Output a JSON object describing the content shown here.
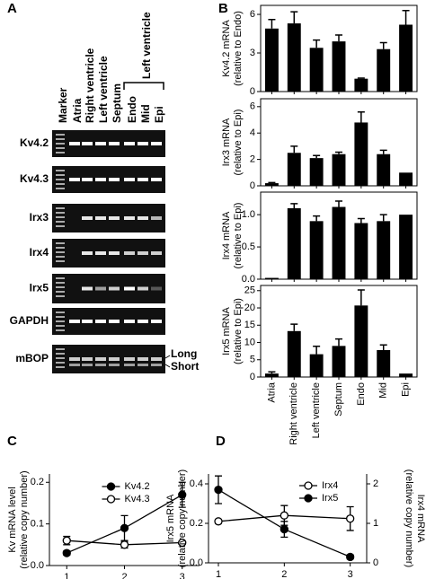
{
  "panel_labels": {
    "a": "A",
    "b": "B",
    "c": "C",
    "d": "D"
  },
  "gel": {
    "lanes": [
      "Marker",
      "Atria",
      "Right ventricle",
      "Left ventricle",
      "Septum",
      "Endo",
      "Mid",
      "Epi"
    ],
    "group_label": "Left ventricle",
    "genes": [
      "Kv4.2",
      "Kv4.3",
      "Irx3",
      "Irx4",
      "Irx5",
      "GAPDH",
      "mBOP"
    ],
    "band_labels": [
      "Long",
      "Short"
    ]
  },
  "chart_data": [
    {
      "type": "bar",
      "ylabel": [
        "Kv4.2 mRNA",
        "(relative to Endo)"
      ],
      "color": "#000000",
      "values": [
        4.9,
        5.3,
        3.4,
        3.9,
        1.0,
        3.3,
        5.2
      ],
      "errors": [
        0.7,
        0.9,
        0.6,
        0.5,
        0.05,
        0.5,
        1.1
      ],
      "ylim": [
        0,
        6.7
      ],
      "yticks": [
        0,
        3,
        6
      ]
    },
    {
      "type": "bar",
      "ylabel": [
        "Irx3 mRNA",
        "(relative to Epi)"
      ],
      "color": "#000000",
      "values": [
        0.2,
        2.5,
        2.1,
        2.4,
        4.8,
        2.4,
        1.0
      ],
      "errors": [
        0.05,
        0.5,
        0.2,
        0.15,
        0.8,
        0.3,
        0.0
      ],
      "ylim": [
        0,
        6.6
      ],
      "yticks": [
        0,
        2,
        4,
        6
      ]
    },
    {
      "type": "bar",
      "ylabel": [
        "Irx4 mRNA",
        "(relative to Epi)"
      ],
      "color": "#000000",
      "values": [
        0.02,
        1.1,
        0.9,
        1.12,
        0.87,
        0.9,
        1.0
      ],
      "errors": [
        0.0,
        0.07,
        0.08,
        0.09,
        0.07,
        0.1,
        0.0
      ],
      "ylim": [
        0,
        1.35
      ],
      "yticks": [
        {
          "value": 0,
          "label": "0.0"
        },
        {
          "value": 0.5,
          "label": "0.5"
        },
        {
          "value": 1,
          "label": "1.0"
        }
      ]
    },
    {
      "type": "bar",
      "ylabel": [
        "Irx5 mRNA",
        "(relative to Epi)"
      ],
      "color": "#000000",
      "categories": [
        "Atria",
        "Right ventricle",
        "Left ventricle",
        "Septum",
        "Endo",
        "Mid",
        "Epi"
      ],
      "values": [
        1.0,
        13.3,
        6.6,
        9.0,
        20.7,
        7.8,
        1.0
      ],
      "errors": [
        0.5,
        2.0,
        2.3,
        2.0,
        4.5,
        1.5,
        0.0
      ],
      "ylim": [
        0,
        26.5
      ],
      "yticks": [
        0,
        5,
        10,
        15,
        20,
        25
      ]
    },
    {
      "type": "line",
      "ylabel": [
        "Kv mRNA level",
        "(relative copy number)"
      ],
      "legend": "upper center",
      "x": [
        1,
        2,
        3
      ],
      "xlim": [
        0.7,
        3.3
      ],
      "xticks": [
        1,
        2,
        3
      ],
      "ylim": [
        0,
        0.22
      ],
      "yticks": [
        {
          "value": 0,
          "label": "0.0"
        },
        {
          "value": 0.1,
          "label": "0.1"
        },
        {
          "value": 0.2,
          "label": "0.2"
        }
      ],
      "series": [
        {
          "name": "Kv4.2",
          "color": "#000000",
          "marker_fill": "#000000",
          "values": [
            0.03,
            0.09,
            0.17
          ],
          "errors": [
            0.005,
            0.03,
            0.03
          ]
        },
        {
          "name": "Kv4.3",
          "color": "#000000",
          "marker_fill": "#ffffff",
          "values": [
            0.06,
            0.05,
            0.055
          ],
          "errors": [
            0.01,
            0.008,
            0.003
          ]
        }
      ]
    },
    {
      "type": "line",
      "ylabel": [
        "Irx5 mRNA",
        "(relative copy number)"
      ],
      "y2label": [
        "Irx4 mRNA",
        "(relative copy number)"
      ],
      "legend": "upper right",
      "x": [
        1,
        2,
        3
      ],
      "xlim": [
        0.85,
        3.25
      ],
      "xticks": [
        1,
        2,
        3
      ],
      "ylim": [
        0,
        0.45
      ],
      "yticks": [
        {
          "value": 0,
          "label": "0.0"
        },
        {
          "value": 0.2,
          "label": "0.2"
        },
        {
          "value": 0.4,
          "label": "0.4"
        }
      ],
      "y2lim": [
        0,
        2.25
      ],
      "y2ticks": [
        0,
        1,
        2
      ],
      "series": [
        {
          "name": "Irx4",
          "color": "#000000",
          "marker_fill": "#ffffff",
          "axis": "y2",
          "values": [
            1.05,
            1.2,
            1.12
          ],
          "errors": [
            0.05,
            0.25,
            0.3
          ]
        },
        {
          "name": "Irx5",
          "color": "#000000",
          "marker_fill": "#000000",
          "values": [
            0.37,
            0.17,
            0.03
          ],
          "errors": [
            0.07,
            0.04,
            0.01
          ]
        }
      ]
    }
  ]
}
